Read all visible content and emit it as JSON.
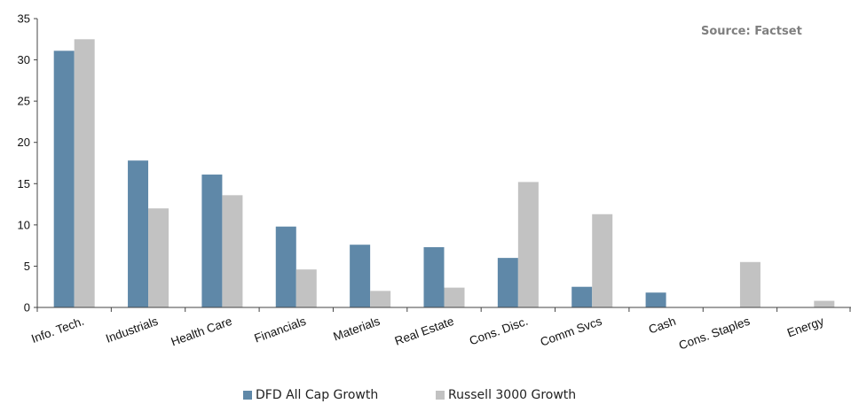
{
  "chart_data": {
    "type": "bar",
    "categories": [
      "Info. Tech.",
      "Industrials",
      "Health Care",
      "Financials",
      "Materials",
      "Real Estate",
      "Cons. Disc.",
      "Comm Svcs",
      "Cash",
      "Cons. Staples",
      "Energy"
    ],
    "series": [
      {
        "name": "DFD All Cap Growth",
        "color": "#5f88a8",
        "values": [
          31.1,
          17.8,
          16.1,
          9.8,
          7.6,
          7.3,
          6.0,
          2.5,
          1.8,
          0.0,
          0.0
        ]
      },
      {
        "name": "Russell 3000 Growth",
        "color": "#c2c2c2",
        "values": [
          32.5,
          12.0,
          13.6,
          4.6,
          2.0,
          2.4,
          15.2,
          11.3,
          0.0,
          5.5,
          0.8
        ]
      }
    ],
    "ylim": [
      0,
      35
    ],
    "yticks": [
      0,
      5,
      10,
      15,
      20,
      25,
      30,
      35
    ],
    "grid": false,
    "legend_position": "bottom",
    "annotation": "Source: Factset"
  }
}
